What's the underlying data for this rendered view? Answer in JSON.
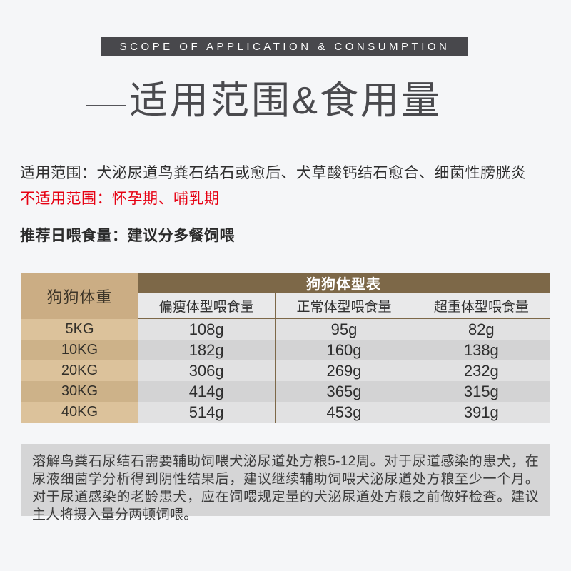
{
  "page": {
    "background": "#f5f6f8"
  },
  "header": {
    "eyebrow": "SCOPE OF APPLICATION & CONSUMPTION",
    "title": "适用范围&食用量",
    "bar_color": "#48484c",
    "title_color": "#4a4a4e",
    "line_color": "#55555a"
  },
  "intro": {
    "scope_line": "适用范围：犬泌尿道鸟粪石结石或愈后、犬草酸钙结石愈合、细菌性膀胱炎",
    "not_applicable_line": "不适用范围：怀孕期、哺乳期",
    "not_applicable_color": "#e60012",
    "feeding_line": "推荐日喂食量：建议分多餐饲喂"
  },
  "table": {
    "corner_header": "狗狗体重",
    "group_header": "狗狗体型表",
    "columns": [
      "偏瘦体型喂食量",
      "正常体型喂食量",
      "超重体型喂食量"
    ],
    "rows": [
      {
        "weight": "5KG",
        "values": [
          "108g",
          "95g",
          "82g"
        ]
      },
      {
        "weight": "10KG",
        "values": [
          "182g",
          "160g",
          "138g"
        ]
      },
      {
        "weight": "20KG",
        "values": [
          "306g",
          "269g",
          "232g"
        ]
      },
      {
        "weight": "30KG",
        "values": [
          "414g",
          "365g",
          "315g"
        ]
      },
      {
        "weight": "40KG",
        "values": [
          "514g",
          "453g",
          "391g"
        ]
      }
    ],
    "colors": {
      "corner_bg": "#cbad84",
      "group_bg": "#7d6848",
      "subheader_bg": "#e9e9ea",
      "row_odd_bg": "#e1e1e2",
      "row_even_bg": "#d3d3d4",
      "weight_odd_bg": "#dcc29b",
      "weight_even_bg": "#cdb289",
      "divider": "#7d6848"
    }
  },
  "footnote": {
    "text": "溶解鸟粪石尿结石需要辅助饲喂犬泌尿道处方粮5-12周。对于尿道感染的患犬，在尿液细菌学分析得到阴性结果后，建议继续辅助饲喂犬泌尿道处方粮至少一个月。对于尿道感染的老龄患犬，应在饲喂规定量的犬泌尿道处方粮之前做好检查。建议主人将摄入量分两顿饲喂。",
    "bg": "#d5d5d6"
  }
}
